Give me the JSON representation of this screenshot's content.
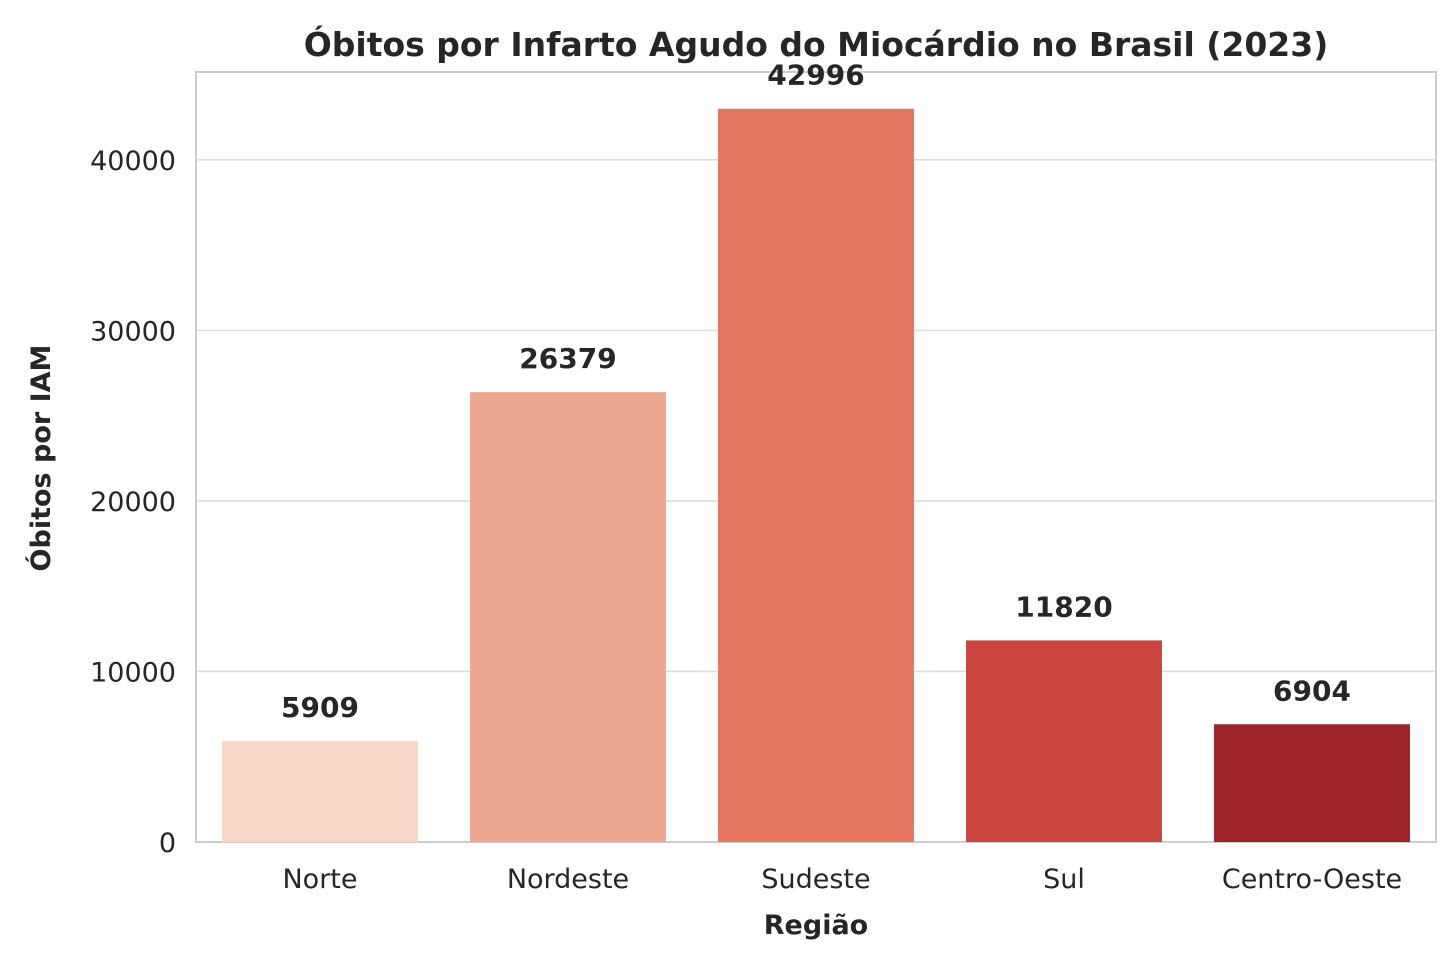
{
  "chart_data": {
    "type": "bar",
    "title": "Óbitos por Infarto Agudo do Miocárdio no Brasil (2023)",
    "xlabel": "Região",
    "ylabel": "Óbitos por IAM",
    "categories": [
      "Norte",
      "Nordeste",
      "Sudeste",
      "Sul",
      "Centro-Oeste"
    ],
    "values": [
      5909,
      26379,
      42996,
      11820,
      6904
    ],
    "value_labels": [
      "5909",
      "26379",
      "42996",
      "11820",
      "6904"
    ],
    "colors": [
      "#f8d6c8",
      "#eda791",
      "#e5765f",
      "#cb4540",
      "#9c2428"
    ],
    "ylim": [
      0,
      45150
    ],
    "yticks": [
      0,
      10000,
      20000,
      30000,
      40000
    ],
    "ytick_labels": [
      "0",
      "10000",
      "20000",
      "30000",
      "40000"
    ],
    "grid": true,
    "grid_axis": "y",
    "legend": "none"
  }
}
